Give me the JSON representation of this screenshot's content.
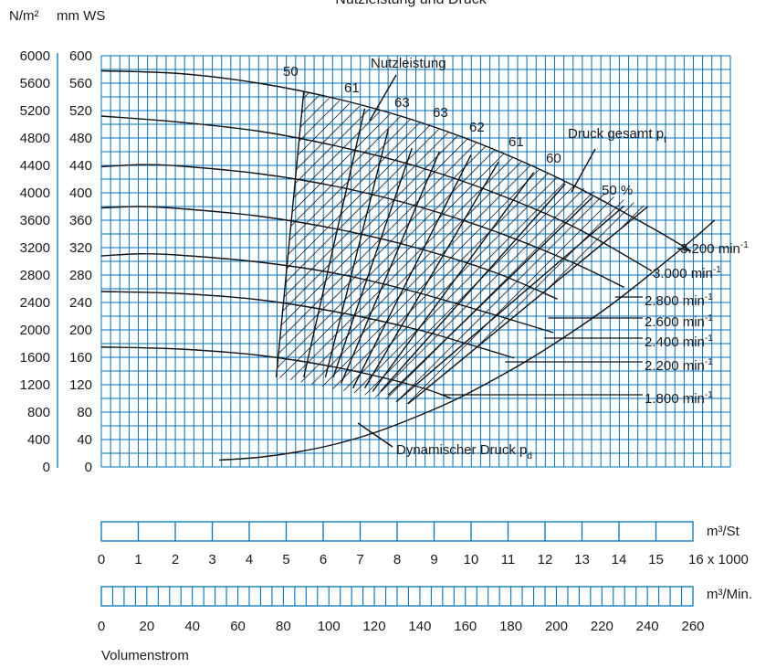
{
  "chart_data": {
    "type": "line",
    "title": "Nutzleistung und Druck",
    "y_axis_left": {
      "unit": "N/m²",
      "ticks": [
        "6000",
        "5600",
        "5200",
        "4800",
        "4400",
        "4000",
        "3600",
        "3200",
        "2800",
        "2400",
        "2000",
        "1600",
        "1200",
        "800",
        "400",
        "0"
      ]
    },
    "y_axis_right": {
      "unit": "mm WS",
      "ticks": [
        "600",
        "560",
        "520",
        "480",
        "440",
        "400",
        "360",
        "320",
        "280",
        "240",
        "200",
        "160",
        "120",
        "80",
        "40",
        "0"
      ]
    },
    "x_axis_flow_st": {
      "unit": "m³/St",
      "ticks": [
        "0",
        "1",
        "2",
        "3",
        "4",
        "5",
        "6",
        "7",
        "8",
        "9",
        "10",
        "11",
        "12",
        "13",
        "14",
        "15",
        "16 x 1000"
      ]
    },
    "x_axis_flow_min": {
      "unit": "m³/Min.",
      "ticks": [
        "0",
        "20",
        "40",
        "60",
        "80",
        "100",
        "120",
        "140",
        "160",
        "180",
        "200",
        "220",
        "240",
        "260"
      ]
    },
    "xlabel": "Volumenstrom",
    "ylim": [
      0,
      600
    ],
    "xlim": [
      0,
      16
    ],
    "grid": true,
    "annotations": {
      "power": "Nutzleistung",
      "total_pressure": "Druck gesamt p",
      "total_pressure_sub": "t",
      "dynamic_pressure": "Dynamischer Druck p",
      "dynamic_pressure_sub": "d"
    },
    "efficiency_labels": [
      "50",
      "61",
      "63",
      "63",
      "62",
      "61",
      "60",
      "50 %"
    ],
    "speed_curves": [
      {
        "label": "3.200 min",
        "sup": "-1",
        "points": [
          [
            0,
            578
          ],
          [
            2,
            574
          ],
          [
            4,
            560
          ],
          [
            6,
            537
          ],
          [
            8,
            505
          ],
          [
            10,
            463
          ],
          [
            12,
            411
          ],
          [
            14,
            349
          ],
          [
            15,
            315
          ]
        ]
      },
      {
        "label": "3.000 min",
        "sup": "-1",
        "points": [
          [
            0,
            512
          ],
          [
            2,
            503
          ],
          [
            4,
            490
          ],
          [
            6,
            468
          ],
          [
            8,
            439
          ],
          [
            10,
            400
          ],
          [
            12,
            351
          ],
          [
            14,
            286
          ]
        ]
      },
      {
        "label": "2.800 min",
        "sup": "-1",
        "points": [
          [
            0,
            438
          ],
          [
            1,
            441
          ],
          [
            2,
            439
          ],
          [
            4,
            428
          ],
          [
            6,
            409
          ],
          [
            8,
            381
          ],
          [
            10,
            344
          ],
          [
            12,
            298
          ],
          [
            13.3,
            262
          ]
        ]
      },
      {
        "label": "2.600 min",
        "sup": "-1",
        "points": [
          [
            0,
            378
          ],
          [
            1,
            380
          ],
          [
            2,
            377
          ],
          [
            4,
            366
          ],
          [
            6,
            347
          ],
          [
            8,
            320
          ],
          [
            10,
            284
          ],
          [
            11.6,
            245
          ]
        ]
      },
      {
        "label": "2.400 min",
        "sup": "-1",
        "points": [
          [
            0,
            308
          ],
          [
            1,
            311
          ],
          [
            2,
            309
          ],
          [
            4,
            299
          ],
          [
            6,
            282
          ],
          [
            8,
            255
          ],
          [
            10,
            222
          ],
          [
            11.5,
            196
          ]
        ]
      },
      {
        "label": "2.200 min",
        "sup": "-1",
        "points": [
          [
            0,
            256
          ],
          [
            2,
            253
          ],
          [
            4,
            244
          ],
          [
            6,
            226
          ],
          [
            8,
            201
          ],
          [
            9.4,
            178
          ],
          [
            10.5,
            159
          ]
        ]
      },
      {
        "label": "1.800 min",
        "sup": "-1",
        "points": [
          [
            0,
            175
          ],
          [
            2,
            172
          ],
          [
            4,
            163
          ],
          [
            6,
            145
          ],
          [
            8,
            118
          ],
          [
            8.9,
            100
          ]
        ]
      }
    ],
    "dynamic_pressure_curve": [
      [
        3.0,
        10
      ],
      [
        4,
        14
      ],
      [
        5,
        22
      ],
      [
        6,
        34
      ],
      [
        7,
        51
      ],
      [
        8,
        73
      ],
      [
        9,
        98
      ],
      [
        10,
        128
      ],
      [
        11,
        161
      ],
      [
        12,
        198
      ],
      [
        13,
        238
      ],
      [
        14,
        283
      ],
      [
        15,
        330
      ],
      [
        15.6,
        360
      ]
    ],
    "efficiency_lines": [
      [
        [
          4.45,
          131
        ],
        [
          5.15,
          548
        ]
      ],
      [
        [
          5.15,
          131
        ],
        [
          6.7,
          523
        ]
      ],
      [
        [
          5.7,
          131
        ],
        [
          7.3,
          493
        ]
      ],
      [
        [
          5.9,
          131
        ],
        [
          7.9,
          465
        ]
      ],
      [
        [
          6.1,
          122
        ],
        [
          8.6,
          460
        ]
      ],
      [
        [
          6.4,
          115
        ],
        [
          9.4,
          455
        ]
      ],
      [
        [
          6.7,
          115
        ],
        [
          10.1,
          445
        ]
      ],
      [
        [
          6.9,
          110
        ],
        [
          11.0,
          430
        ]
      ],
      [
        [
          7.1,
          110
        ],
        [
          11.8,
          413
        ]
      ],
      [
        [
          7.3,
          105
        ],
        [
          12.5,
          394
        ]
      ],
      [
        [
          7.5,
          95
        ],
        [
          13.3,
          381
        ]
      ],
      [
        [
          7.8,
          92
        ],
        [
          13.9,
          380
        ]
      ]
    ],
    "hatched_region": [
      [
        4.45,
        131
      ],
      [
        5.15,
        548
      ],
      [
        8,
        505
      ],
      [
        10,
        463
      ],
      [
        12,
        411
      ],
      [
        13.9,
        380
      ],
      [
        7.8,
        92
      ]
    ]
  }
}
